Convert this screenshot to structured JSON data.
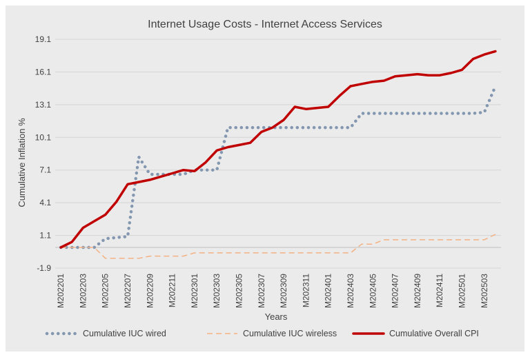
{
  "chart_data": {
    "type": "line",
    "title": "Internet Usage Costs - Internet Access Services",
    "xlabel": "Years",
    "ylabel": "Cumulative Inflation %",
    "ylim": [
      -1.9,
      19.1
    ],
    "yticks": [
      "19.1",
      "16.1",
      "13.1",
      "10.1",
      "7.1",
      "4.1",
      "1.1",
      "-1.9"
    ],
    "grid": true,
    "legend_position": "bottom",
    "categories": [
      "M202201",
      "M202202",
      "M202203",
      "M202204",
      "M202205",
      "M202206",
      "M202207",
      "M202208",
      "M202209",
      "M202210",
      "M202211",
      "M202212",
      "M202301",
      "M202302",
      "M202303",
      "M202304",
      "M202305",
      "M202306",
      "M202307",
      "M202308",
      "M202309",
      "M202310",
      "M202311",
      "M202312",
      "M202401",
      "M202402",
      "M202403",
      "M202404",
      "M202405",
      "M202406",
      "M202407",
      "M202408",
      "M202409",
      "M202410",
      "M202411",
      "M202412",
      "M202501",
      "M202502",
      "M202503",
      "M202504"
    ],
    "tick_labels": [
      "M202201",
      "M202203",
      "M202205",
      "M202207",
      "M202209",
      "M202211",
      "M202301",
      "M202303",
      "M202305",
      "M202307",
      "M202309",
      "M202311",
      "M202401",
      "M202403",
      "M202405",
      "M202407",
      "M202409",
      "M202411",
      "M202501",
      "M202503"
    ],
    "series": [
      {
        "name": "Cumulative IUC wired",
        "color": "#8497b0",
        "style": "dotted",
        "values": [
          0.0,
          0.0,
          0.0,
          0.0,
          0.8,
          0.9,
          1.0,
          8.3,
          6.7,
          6.7,
          6.7,
          6.7,
          7.1,
          7.1,
          7.1,
          11.0,
          11.0,
          11.0,
          11.0,
          11.0,
          11.0,
          11.0,
          11.0,
          11.0,
          11.0,
          11.0,
          11.0,
          12.3,
          12.3,
          12.3,
          12.3,
          12.3,
          12.3,
          12.3,
          12.3,
          12.3,
          12.3,
          12.3,
          12.4,
          14.8
        ]
      },
      {
        "name": "Cumulative IUC wireless",
        "color": "#f4b183",
        "style": "dashed",
        "values": [
          0.0,
          0.0,
          0.0,
          0.0,
          -1.0,
          -1.0,
          -1.0,
          -1.0,
          -0.8,
          -0.8,
          -0.8,
          -0.8,
          -0.5,
          -0.5,
          -0.5,
          -0.5,
          -0.5,
          -0.5,
          -0.5,
          -0.5,
          -0.5,
          -0.5,
          -0.5,
          -0.5,
          -0.5,
          -0.5,
          -0.5,
          0.3,
          0.3,
          0.7,
          0.7,
          0.7,
          0.7,
          0.7,
          0.7,
          0.7,
          0.7,
          0.7,
          0.7,
          1.2
        ]
      },
      {
        "name": "Cumulative Overall CPI",
        "color": "#c00000",
        "style": "solid",
        "values": [
          0.0,
          0.5,
          1.8,
          2.4,
          3.0,
          4.2,
          5.8,
          6.0,
          6.2,
          6.5,
          6.8,
          7.1,
          7.0,
          7.8,
          8.9,
          9.2,
          9.4,
          9.6,
          10.6,
          11.0,
          11.7,
          12.9,
          12.7,
          12.8,
          12.9,
          13.9,
          14.8,
          15.0,
          15.2,
          15.3,
          15.7,
          15.8,
          15.9,
          15.8,
          15.8,
          16.0,
          16.3,
          17.3,
          17.7,
          18.0
        ]
      }
    ]
  }
}
